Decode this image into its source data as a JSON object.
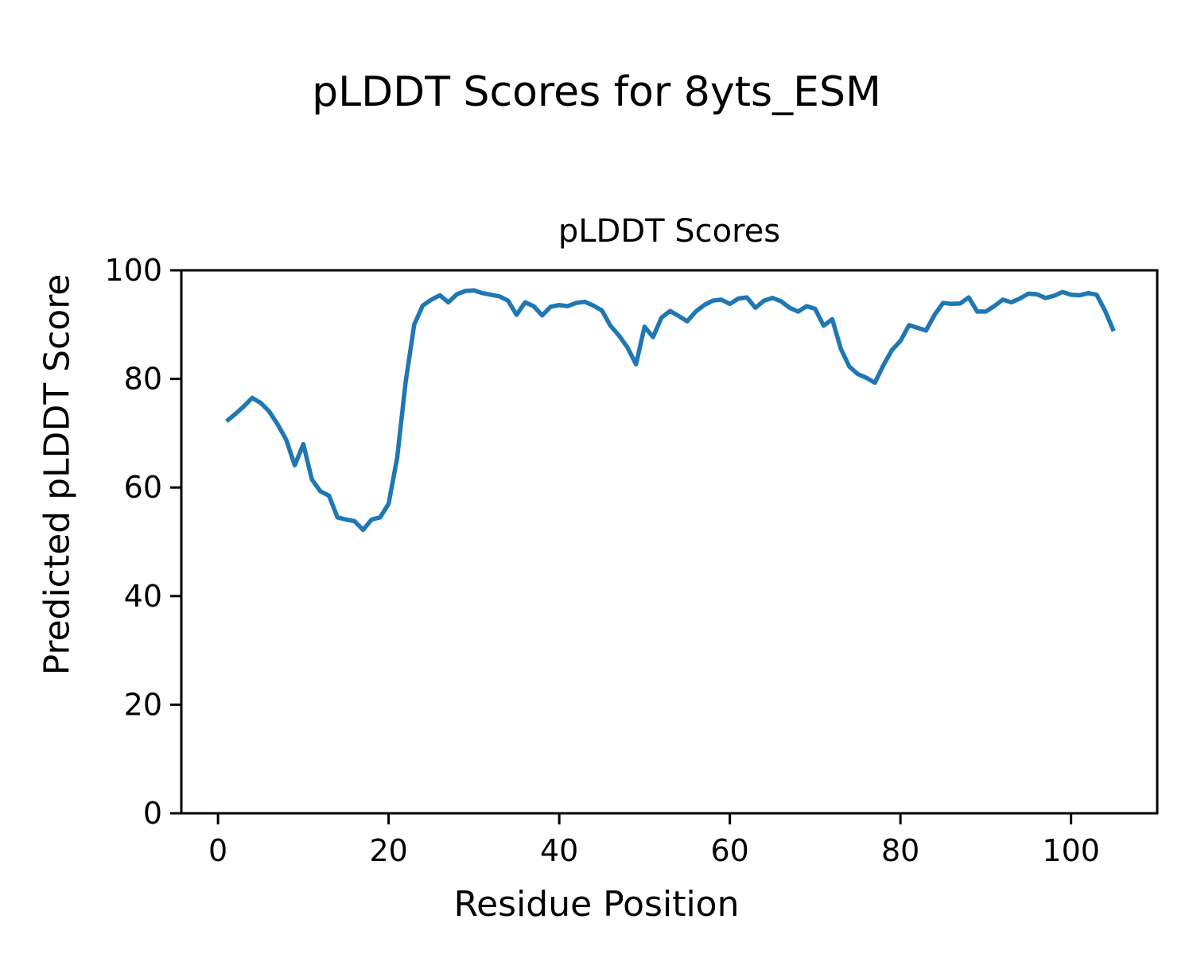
{
  "figure": {
    "suptitle": "pLDDT Scores for 8yts_ESM",
    "axes_title": "pLDDT Scores",
    "xlabel": "Residue Position",
    "ylabel": "Predicted pLDDT Score"
  },
  "chart_data": {
    "type": "line",
    "title": "pLDDT Scores",
    "suptitle": "pLDDT Scores for 8yts_ESM",
    "xlabel": "Residue Position",
    "ylabel": "Predicted pLDDT Score",
    "legend": null,
    "grid": false,
    "line_color": "#1f77b4",
    "line_width": 5.5,
    "spine_color": "#000000",
    "xlim": [
      -4.3,
      110.1
    ],
    "ylim": [
      0,
      100
    ],
    "xticks": [
      0,
      20,
      40,
      60,
      80,
      100
    ],
    "yticks": [
      0,
      20,
      40,
      60,
      80,
      100
    ],
    "x": [
      1,
      2,
      3,
      4,
      5,
      6,
      7,
      8,
      9,
      10,
      11,
      12,
      13,
      14,
      15,
      16,
      17,
      18,
      19,
      20,
      21,
      22,
      23,
      24,
      25,
      26,
      27,
      28,
      29,
      30,
      31,
      32,
      33,
      34,
      35,
      36,
      37,
      38,
      39,
      40,
      41,
      42,
      43,
      44,
      45,
      46,
      47,
      48,
      49,
      50,
      51,
      52,
      53,
      54,
      55,
      56,
      57,
      58,
      59,
      60,
      61,
      62,
      63,
      64,
      65,
      66,
      67,
      68,
      69,
      70,
      71,
      72,
      73,
      74,
      75,
      76,
      77,
      78,
      79,
      80,
      81,
      82,
      83,
      84,
      85,
      86,
      87,
      88,
      89,
      90,
      91,
      92,
      93,
      94,
      95,
      96,
      97,
      98,
      99,
      100,
      101,
      102,
      103,
      104,
      105
    ],
    "y": [
      72.2,
      73.5,
      74.9,
      76.5,
      75.6,
      74.0,
      71.6,
      68.8,
      64.1,
      68.0,
      61.5,
      59.3,
      58.5,
      54.5,
      54.1,
      53.8,
      52.2,
      54.1,
      54.5,
      57.0,
      65.5,
      79.5,
      90.0,
      93.5,
      94.6,
      95.4,
      94.1,
      95.6,
      96.2,
      96.3,
      95.8,
      95.5,
      95.2,
      94.4,
      91.8,
      94.1,
      93.4,
      91.7,
      93.3,
      93.6,
      93.4,
      94.0,
      94.2,
      93.5,
      92.6,
      89.8,
      88.0,
      85.8,
      82.7,
      89.6,
      87.7,
      91.3,
      92.5,
      91.6,
      90.6,
      92.4,
      93.6,
      94.4,
      94.6,
      93.8,
      94.8,
      95.0,
      93.1,
      94.4,
      94.9,
      94.3,
      93.1,
      92.4,
      93.4,
      92.9,
      89.8,
      91.0,
      85.6,
      82.3,
      80.9,
      80.2,
      79.3,
      82.5,
      85.3,
      87.0,
      89.9,
      89.4,
      88.9,
      91.8,
      94.0,
      93.8,
      93.9,
      95.0,
      92.4,
      92.4,
      93.4,
      94.6,
      94.1,
      94.8,
      95.7,
      95.6,
      94.9,
      95.3,
      96.0,
      95.5,
      95.4,
      95.8,
      95.5,
      92.5,
      88.8
    ]
  }
}
